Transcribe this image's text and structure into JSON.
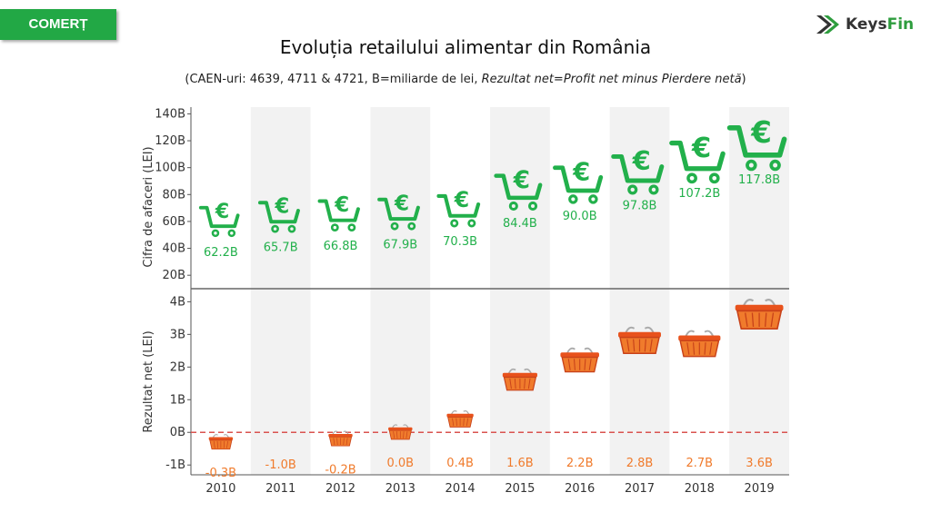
{
  "header": {
    "tag": "COMERȚ",
    "logo_text_a": "Keys",
    "logo_text_b": "Fin",
    "logo_icon": "chevron-arrow-icon"
  },
  "colors": {
    "green": "#22b04b",
    "orange": "#f07b2c",
    "band": "#f2f2f2",
    "zero_line": "#d9534f"
  },
  "icons": {
    "top": "shopping-cart-euro-icon",
    "bottom": "shopping-basket-icon"
  },
  "chart_data": {
    "type": "scatter",
    "title": "Evoluția retailului alimentar din România",
    "subtitle_plain": "(CAEN-uri: 4639, 4711 & 4721, B=miliarde de lei, ",
    "subtitle_italic": "Rezultat net=Profit net minus Pierdere netă",
    "subtitle_end": ")",
    "x": [
      "2010",
      "2011",
      "2012",
      "2013",
      "2014",
      "2015",
      "2016",
      "2017",
      "2018",
      "2019"
    ],
    "panels": [
      {
        "name": "cifra",
        "ylabel": "Cifra de afaceri (LEI)",
        "ylim": [
          10,
          145
        ],
        "ticks": [
          20,
          40,
          60,
          80,
          100,
          120,
          140
        ],
        "tick_labels": [
          "20B",
          "40B",
          "60B",
          "80B",
          "100B",
          "120B",
          "140B"
        ],
        "values": [
          62.2,
          65.7,
          66.8,
          67.9,
          70.3,
          84.4,
          90.0,
          97.8,
          107.2,
          117.8
        ],
        "labels": [
          "62.2B",
          "65.7B",
          "66.8B",
          "67.9B",
          "70.3B",
          "84.4B",
          "90.0B",
          "97.8B",
          "107.2B",
          "117.8B"
        ]
      },
      {
        "name": "rezultat",
        "ylabel": "Rezultat net (LEI)",
        "ylim": [
          -1.3,
          4.4
        ],
        "ticks": [
          -1,
          0,
          1,
          2,
          3,
          4
        ],
        "tick_labels": [
          "-1B",
          "0B",
          "1B",
          "2B",
          "3B",
          "4B"
        ],
        "values": [
          -0.3,
          -1.0,
          -0.2,
          0.0,
          0.4,
          1.6,
          2.2,
          2.8,
          2.7,
          3.6
        ],
        "labels": [
          "-0.3B",
          "-1.0B",
          "-0.2B",
          "0.0B",
          "0.4B",
          "1.6B",
          "2.2B",
          "2.8B",
          "2.7B",
          "3.6B"
        ]
      }
    ],
    "alternating_bands": true,
    "zero_reference_line": true
  }
}
